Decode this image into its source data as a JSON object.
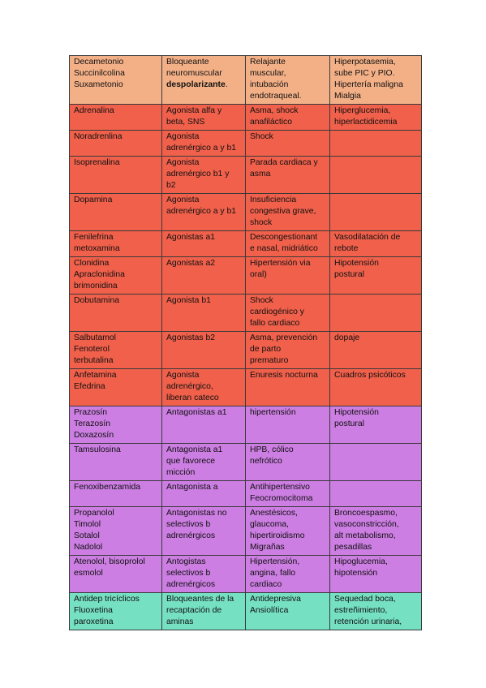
{
  "table": {
    "rows": [
      {
        "group": "orange",
        "cells": [
          "Decametonio\nSuccinilcolina\nSuxametonio",
          "Bloqueante\nneuromuscular",
          "Relajante\nmuscular,\nintubación\nendotraqueal.",
          "Hiperpotasemia,\nsube PIC y PIO.\nHipertería maligna\nMialgia"
        ],
        "bold_extra": "despolarizante",
        "bold_suffix": "."
      },
      {
        "group": "red",
        "cells": [
          "Adrenalina",
          "Agonista alfa y\nbeta, SNS",
          "Asma, shock\nanafiláctico",
          "Hiperglucemia,\nhiperlactidicemia"
        ]
      },
      {
        "group": "red",
        "cells": [
          "Noradrenlina",
          "Agonista\nadrenérgico a y b1",
          "Shock",
          ""
        ]
      },
      {
        "group": "red",
        "cells": [
          "Isoprenalina",
          "Agonista\nadrenérgico b1 y\nb2",
          "Parada cardiaca y\nasma",
          ""
        ]
      },
      {
        "group": "red",
        "cells": [
          "Dopamina",
          "Agonista\nadrenérgico a y b1",
          "Insuficiencia\ncongestiva grave,\nshock",
          ""
        ]
      },
      {
        "group": "red",
        "cells": [
          "Fenilefrina\nmetoxamina",
          "Agonistas a1",
          "Descongestionant\ne nasal, midriático",
          "Vasodilatación de\nrebote"
        ]
      },
      {
        "group": "red",
        "cells": [
          "Clonidina\nApraclonidina\nbrimonidina",
          "Agonistas a2",
          "Hipertensión via\noral)",
          "Hipotensión\npostural"
        ]
      },
      {
        "group": "red",
        "cells": [
          "Dobutamina",
          "Agonista b1",
          "Shock\ncardiogénico y\nfallo cardiaco",
          ""
        ]
      },
      {
        "group": "red",
        "cells": [
          "Salbutamol\nFenoterol\nterbutalina",
          "Agonistas b2",
          "Asma, prevención\nde parto\nprematuro",
          "dopaje"
        ]
      },
      {
        "group": "red",
        "cells": [
          "Anfetamina\nEfedrina",
          "Agonista\nadrenérgico,\nliberan cateco",
          "Enuresis nocturna",
          "Cuadros psicóticos"
        ]
      },
      {
        "group": "violet",
        "cells": [
          "Prazosín\nTerazosín\nDoxazosín",
          "Antagonistas a1",
          "hipertensión",
          "Hipotensión\npostural"
        ]
      },
      {
        "group": "violet",
        "cells": [
          "Tamsulosina",
          "Antagonista a1\nque favorece\nmicción",
          "HPB, cólico\nnefrótico",
          ""
        ]
      },
      {
        "group": "violet",
        "cells": [
          "Fenoxibenzamida",
          "Antagonista a",
          "Antihipertensivo\nFeocromocitoma",
          ""
        ]
      },
      {
        "group": "violet",
        "cells": [
          "Propanolol\nTimolol\nSotalol\nNadolol",
          "Antagonistas no\nselectivos b\nadrenérgicos",
          "Anestésicos,\nglaucoma,\nhipertiroidismo\nMigrañas",
          "Broncoespasmo,\nvasoconstricción,\nalt metabolismo,\npesadillas"
        ]
      },
      {
        "group": "violet",
        "cells": [
          "Atenolol, bisoprolol\nesmolol",
          "Antogistas\nselectivos b\nadrenérgicos",
          "Hipertensión,\nangina, fallo\ncardiaco",
          "Hipoglucemia,\nhipotensión"
        ]
      },
      {
        "group": "teal",
        "cells": [
          "Antidep tricíclicos\nFluoxetina\nparoxetina",
          "Bloqueantes de la\nrecaptación de\naminas",
          "Antidepresiva\nAnsiolítica",
          "Sequedad boca,\nestreñimiento,\nretención urinaria,"
        ]
      }
    ]
  }
}
